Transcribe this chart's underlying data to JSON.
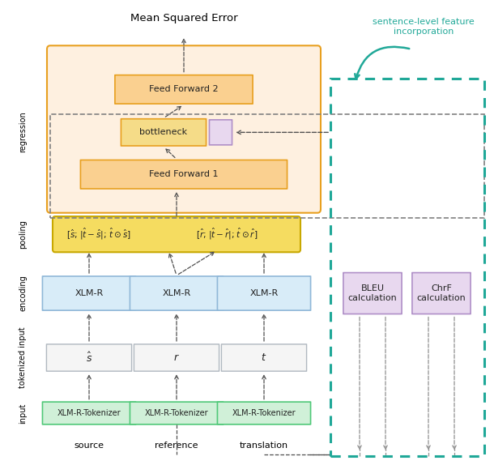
{
  "title": "Mean Squared Error",
  "caption_label": "sentence-level feature\nincorporation",
  "source_label": "source",
  "reference_label": "reference",
  "translation_label": "translation",
  "tokenizer_label": "XLM-R-Tokenizer",
  "encoder_label": "XLM-R",
  "bottleneck_label": "bottleneck",
  "ff1_label": "Feed Forward 1",
  "ff2_label": "Feed Forward 2",
  "bleu_label": "BLEU\ncalculation",
  "chrf_label": "ChrF\ncalculation",
  "pool_left_label": "[$\\hat{s}$; $|\\hat{t} - \\hat{s}|$; $\\hat{t} \\odot \\hat{s}$]",
  "pool_right_label": "[$\\hat{r}$; $|\\hat{t} - \\hat{r}|$; $\\hat{t} \\odot \\hat{r}$]",
  "color_orange_bg": "#FEF0E0",
  "color_orange_border": "#E8A020",
  "color_yellow_bg": "#F5DC60",
  "color_yellow_border": "#C8A800",
  "color_ff_bg": "#FAD090",
  "color_ff_border": "#E8A020",
  "color_blue_bg": "#D8ECF8",
  "color_blue_border": "#90B8D8",
  "color_green_bg": "#D0F0D8",
  "color_green_border": "#50C878",
  "color_purple_bg": "#E8D8EF",
  "color_purple_border": "#B090C8",
  "color_gray_bg": "#F5F5F5",
  "color_gray_border": "#B0B8C0",
  "color_teal": "#20A898",
  "color_dashed_dark": "#505050",
  "color_dashed_gray": "#909090",
  "figsize": [
    6.1,
    5.74
  ],
  "dpi": 100
}
